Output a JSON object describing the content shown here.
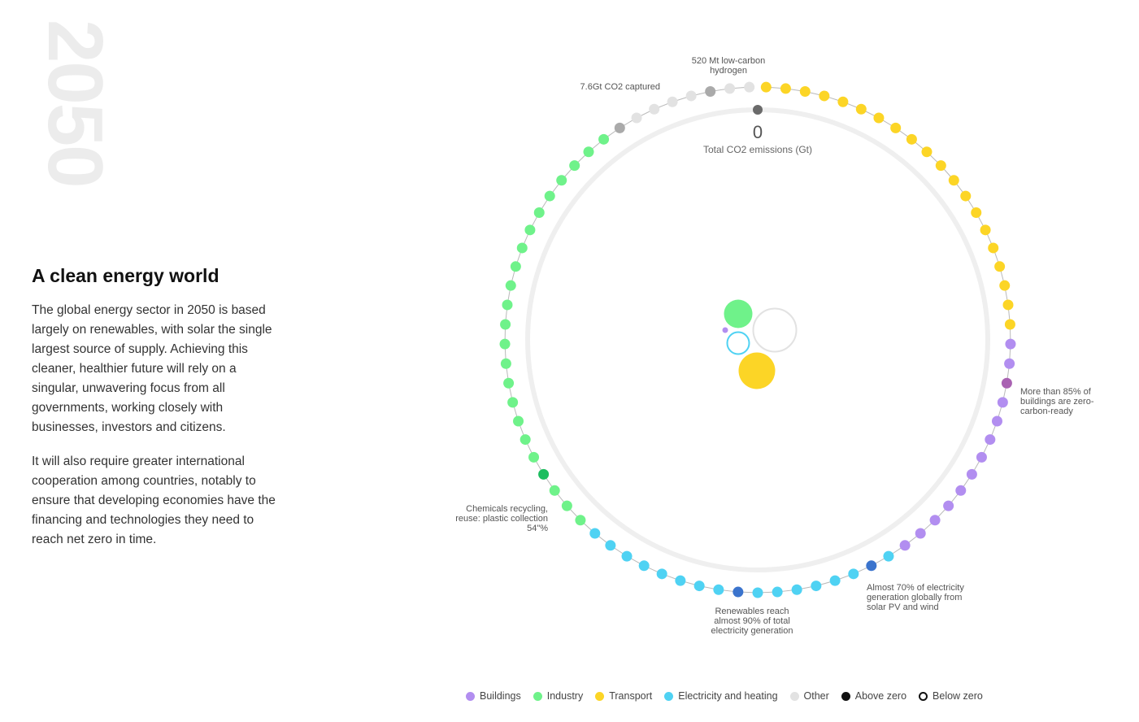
{
  "year": "2050",
  "headline": "A clean energy world",
  "paragraphs": [
    "The global energy sector in 2050 is based largely on renewables, with solar the single largest source of supply. Achieving this cleaner, healthier future will rely on a singular, unwavering focus from all governments, working closely with businesses, investors and citizens.",
    "It will also require greater international cooperation among countries, notably to ensure that developing economies have the financing and technologies they need to reach net zero in time."
  ],
  "center": {
    "value": "0",
    "label": "Total CO2 emissions (Gt)"
  },
  "colors": {
    "buildings": "#b28ef0",
    "industry": "#6ff28a",
    "transport": "#fcd526",
    "electricity": "#4fd2f3",
    "other": "#e2e2e2",
    "above": "#111111",
    "below": "#111111",
    "ring": "#efefef",
    "highlight_other": "#aaaaaa",
    "highlight_buildings": "#a962b2",
    "highlight_industry": "#1dbd5f",
    "highlight_electricity": "#3b74cd",
    "marker_top": "#6a6a6a"
  },
  "ring_dots": [
    "transport",
    "transport",
    "transport",
    "transport",
    "transport",
    "transport",
    "transport",
    "transport",
    "transport",
    "transport",
    "transport",
    "transport",
    "transport",
    "transport",
    "transport",
    "transport",
    "transport",
    "transport",
    "transport",
    "transport",
    "buildings",
    "buildings",
    "buildings",
    "buildings",
    "buildings",
    "buildings",
    "buildings",
    "buildings",
    "buildings",
    "buildings",
    "buildings",
    "buildings",
    "buildings",
    "electricity",
    "electricity",
    "electricity",
    "electricity",
    "electricity",
    "electricity",
    "electricity",
    "electricity",
    "electricity",
    "electricity",
    "electricity",
    "electricity",
    "electricity",
    "electricity",
    "electricity",
    "electricity",
    "electricity",
    "industry",
    "industry",
    "industry",
    "industry",
    "industry",
    "industry",
    "industry",
    "industry",
    "industry",
    "industry",
    "industry",
    "industry",
    "industry",
    "industry",
    "industry",
    "industry",
    "industry",
    "industry",
    "industry",
    "industry",
    "industry",
    "industry",
    "industry",
    "other",
    "other",
    "other",
    "other",
    "other",
    "other",
    "other",
    "other"
  ],
  "highlight_dots": [
    {
      "index": 22,
      "kind": "highlight_buildings"
    },
    {
      "index": 34,
      "kind": "highlight_electricity"
    },
    {
      "index": 41,
      "kind": "highlight_electricity"
    },
    {
      "index": 53,
      "kind": "highlight_industry"
    },
    {
      "index": 73,
      "kind": "highlight_other"
    },
    {
      "index": 78,
      "kind": "highlight_other"
    }
  ],
  "annotations": [
    {
      "lines": [
        "520 Mt low-carbon",
        "hydrogen"
      ]
    },
    {
      "lines": [
        "7.6Gt CO2 captured"
      ]
    },
    {
      "lines": [
        "More than 85% of",
        "buildings are zero-",
        "carbon-ready"
      ]
    },
    {
      "lines": [
        "Almost 70% of electricity",
        "generation globally from",
        "solar PV and wind"
      ]
    },
    {
      "lines": [
        "Renewables reach",
        "almost 90% of total",
        "electricity generation"
      ]
    },
    {
      "lines": [
        "Chemicals recycling,",
        "reuse: plastic collection",
        "54\"%"
      ]
    }
  ],
  "inner_bubbles": [
    {
      "kind": "industry"
    },
    {
      "kind": "buildings"
    },
    {
      "kind": "electricity",
      "outline": true
    },
    {
      "kind": "other",
      "outline": true
    },
    {
      "kind": "transport"
    }
  ],
  "legend": [
    {
      "label": "Buildings",
      "kind": "buildings",
      "outline": false
    },
    {
      "label": "Industry",
      "kind": "industry",
      "outline": false
    },
    {
      "label": "Transport",
      "kind": "transport",
      "outline": false
    },
    {
      "label": "Electricity and heating",
      "kind": "electricity",
      "outline": false
    },
    {
      "label": "Other",
      "kind": "other",
      "outline": false
    },
    {
      "label": "Above zero",
      "kind": "above",
      "outline": false
    },
    {
      "label": "Below zero",
      "kind": "below",
      "outline": true
    }
  ]
}
